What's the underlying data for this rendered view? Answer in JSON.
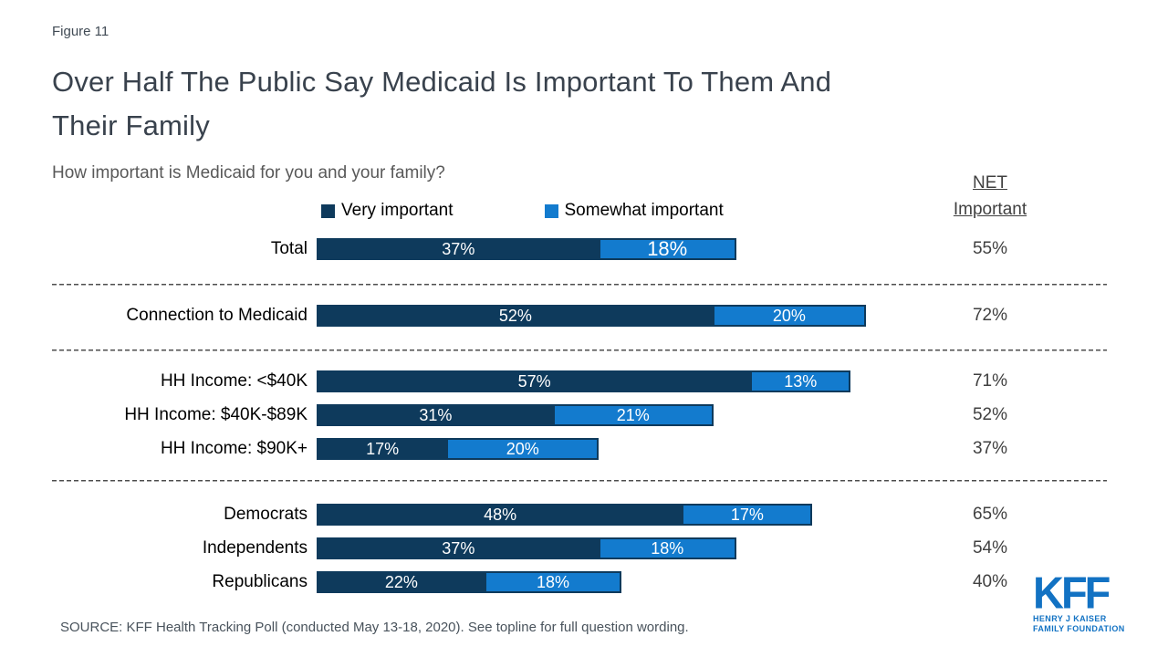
{
  "figure_label": "Figure 11",
  "title": {
    "lines": [
      "Over Half The Public Say Medicaid Is Important To Them And",
      "Their Family"
    ]
  },
  "subtitle": "How important is Medicaid for you and your family?",
  "legend": {
    "items": [
      {
        "label": "Very important",
        "color": "#0E3A5C"
      },
      {
        "label": "Somewhat important",
        "color": "#137BCE"
      }
    ]
  },
  "net_header": {
    "line1": "NET",
    "line2": "Important"
  },
  "chart_data": {
    "type": "bar",
    "orientation": "horizontal-stacked",
    "value_format": "percent",
    "title": "How important is Medicaid for you and your family?",
    "series_names": [
      "Very important",
      "Somewhat important"
    ],
    "colors": {
      "very_important": "#0E3A5C",
      "somewhat_important": "#137BCE",
      "bar_border": "#0E3A5C"
    },
    "net_column_label": "NET Important",
    "groups": [
      {
        "rows": [
          {
            "label": "Total",
            "very": 37,
            "somewhat": 18,
            "net": 55,
            "emphasize_somewhat": true
          }
        ]
      },
      {
        "rows": [
          {
            "label": "Connection to Medicaid",
            "very": 52,
            "somewhat": 20,
            "net": 72
          }
        ]
      },
      {
        "rows": [
          {
            "label": "HH Income: <$40K",
            "very": 57,
            "somewhat": 13,
            "net": 71
          },
          {
            "label": "HH Income: $40K-$89K",
            "very": 31,
            "somewhat": 21,
            "net": 52
          },
          {
            "label": "HH Income: $90K+",
            "very": 17,
            "somewhat": 20,
            "net": 37
          }
        ]
      },
      {
        "rows": [
          {
            "label": "Democrats",
            "very": 48,
            "somewhat": 17,
            "net": 65
          },
          {
            "label": "Independents",
            "very": 37,
            "somewhat": 18,
            "net": 54
          },
          {
            "label": "Republicans",
            "very": 22,
            "somewhat": 18,
            "net": 40
          }
        ]
      }
    ]
  },
  "source": "SOURCE: KFF Health Tracking Poll (conducted May 13-18, 2020). See topline for full question wording.",
  "logo": {
    "kff": "KFF",
    "sub_line1": "HENRY J KAISER",
    "sub_line2": "FAMILY FOUNDATION",
    "color": "#1272C3"
  }
}
